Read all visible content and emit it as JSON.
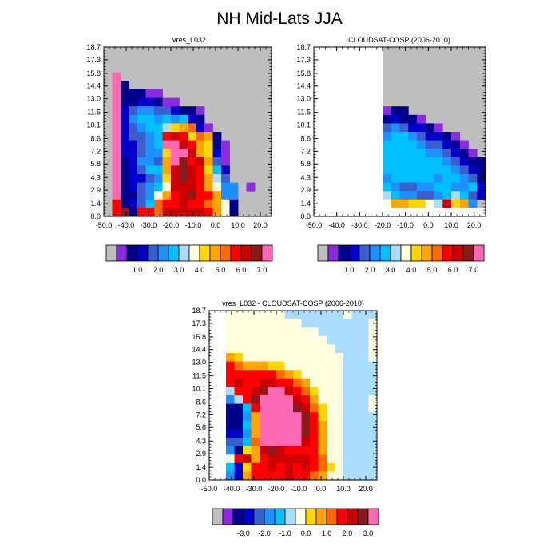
{
  "figure": {
    "title": "NH Mid-Lats JJA"
  },
  "colors": {
    "abs_palette": [
      "#bebebe",
      "#8a2be2",
      "#00008b",
      "#0000cd",
      "#3a5fcd",
      "#1e90ff",
      "#00bfff",
      "#aadcff",
      "#ffffe0",
      "#ffd700",
      "#ffa500",
      "#ff6a00",
      "#ff0000",
      "#cd0000",
      "#8b1a1a",
      "#ff69b4"
    ],
    "diff_palette": [
      "#bebebe",
      "#8a2be2",
      "#00008b",
      "#0000cd",
      "#3a5fcd",
      "#1e90ff",
      "#00bfff",
      "#aadcff",
      "#ffffe0",
      "#ffd700",
      "#ffa500",
      "#ff6a00",
      "#ff0000",
      "#cd0000",
      "#8b1a1a",
      "#ff69b4"
    ],
    "frame": "#000000",
    "missing": "#bebebe"
  },
  "chart_data": [
    {
      "type": "heatmap",
      "title": "vres_L032",
      "x_ticks": [
        "-50.0",
        "-40.0",
        "-30.0",
        "-20.0",
        "-10.0",
        "0.0",
        "10.0",
        "20.0"
      ],
      "y_ticks": [
        "0.0",
        "1.4",
        "2.9",
        "4.3",
        "5.8",
        "7.2",
        "8.6",
        "10.1",
        "11.5",
        "13.0",
        "14.4",
        "15.8",
        "17.3",
        "18.7"
      ],
      "xlim": [
        -50,
        25
      ],
      "ylim": [
        0,
        18.7
      ],
      "background": "missing",
      "colorbar": {
        "labels": [
          "1.0",
          "2.0",
          "3.0",
          "4.0",
          "5.0",
          "6.0",
          "7.0"
        ],
        "palette": "abs_palette"
      },
      "grid": [
        [
          "wwwwwwwwwwwwwwwwwwww",
          "wwwwwwwwwwwwwwwwwwww",
          "wwwwwwwwwwwwwwwwwwww",
          "bwwwwwwwwwwwwwwwwwww",
          "ccwwwwwwwwwwwwwwwwww",
          "pcbbbbwwwwwwwwwwwwww",
          "pccccbbbwwwwwwwwwwww",
          "pcdeccccdcwwwwwwwwww",
          "pbeffefefbcwwwwwwwww",
          "pbeeggffhijbwwwwwwww",
          "pbeeffmkkijicwwwwwww",
          "pbcceenpmlmkcbwwwwww",
          "pbcceekpnmkjdbwwwwww",
          "pbceedkpqmnkdcwwwwww",
          "pbcdffkmqnmkfcwwwwww",
          "pbcceejmnmmkgdwwwwww",
          "pbcefghnmnmkieewbwww",
          "pbbefhklmnmlkeewwwww",
          "pmbcekmmnmmlkhbwwwww",
          "pmbcmmlonnnmkhbwwwww"
        ],
        [
          "",
          "",
          "",
          "",
          "",
          "",
          "",
          "",
          "",
          "",
          "",
          "",
          "",
          "",
          "",
          "",
          "",
          "",
          "",
          ""
        ]
      ],
      "note_grid": "rows top (18.7 km) to bottom (0 km); x from -50 to 25 in 20 columns; w=missing"
    },
    {
      "type": "heatmap",
      "title": "CLOUDSAT-COSP (2006-2010)",
      "x_ticks": [
        "-50.0",
        "-40.0",
        "-30.0",
        "-20.0",
        "-10.0",
        "0.0",
        "10.0",
        "20.0"
      ],
      "y_ticks": [
        "0.0",
        "1.4",
        "2.9",
        "4.3",
        "5.8",
        "7.2",
        "8.6",
        "10.1",
        "11.5",
        "13.0",
        "14.4",
        "15.8",
        "17.3",
        "18.7"
      ],
      "xlim": [
        -50,
        25
      ],
      "ylim": [
        0,
        18.7
      ],
      "colorbar": {
        "labels": [
          "1.0",
          "2.0",
          "3.0",
          "4.0",
          "5.0",
          "6.0",
          "7.0"
        ],
        "palette": "abs_palette"
      }
    },
    {
      "type": "heatmap",
      "title": "vres_L032 - CLOUDSAT-COSP (2006-2010)",
      "x_ticks": [
        "-50.0",
        "-40.0",
        "-30.0",
        "-20.0",
        "-10.0",
        "0.0",
        "10.0",
        "20.0"
      ],
      "y_ticks": [
        "0.0",
        "1.4",
        "2.9",
        "4.3",
        "5.8",
        "7.2",
        "8.6",
        "10.1",
        "11.5",
        "13.0",
        "14.4",
        "15.8",
        "17.3",
        "18.7"
      ],
      "xlim": [
        -50,
        25
      ],
      "ylim": [
        0,
        18.7
      ],
      "colorbar": {
        "labels": [
          "-3.0",
          "-2.0",
          "-1.0",
          "0.0",
          "1.0",
          "2.0",
          "3.0"
        ],
        "palette": "diff_palette"
      }
    }
  ]
}
